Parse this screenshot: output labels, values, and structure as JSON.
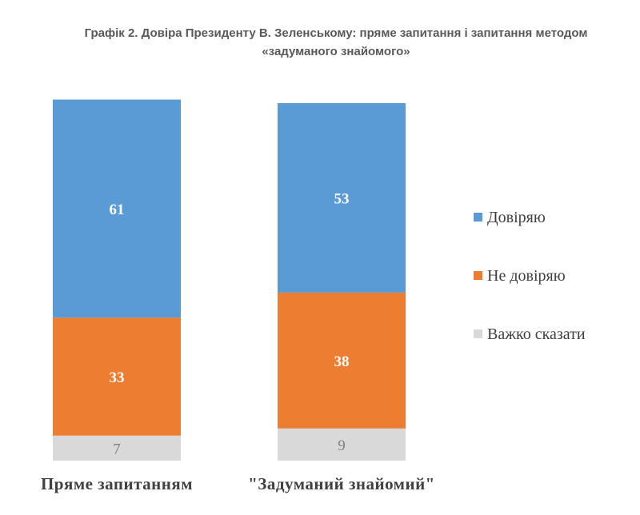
{
  "chart_data": {
    "type": "bar",
    "stacked": true,
    "title_lines": [
      "Графік 2. Довіра Президенту В. Зеленському: пряме запитання і запитання методом",
      "«задуманого знайомого»"
    ],
    "categories": [
      "Пряме запитанням",
      "\"Задуманий знайомий\""
    ],
    "series": [
      {
        "name": "Важко сказати",
        "values": [
          7,
          9
        ]
      },
      {
        "name": "Не довіряю",
        "values": [
          33,
          38
        ]
      },
      {
        "name": "Довіряю",
        "values": [
          61,
          53
        ]
      }
    ],
    "legend_order": [
      "Довіряю",
      "Не довіряю",
      "Важко сказати"
    ],
    "colors": {
      "Довіряю": "#5b9bd5",
      "Не довіряю": "#ed7d31",
      "Важко сказати": "#d9d9d9"
    },
    "label_colors": {
      "Довіряю": "#ffffff",
      "Не довіряю": "#ffffff",
      "Важко сказати": "#7f7f7f"
    },
    "xlabel": "",
    "ylabel": "",
    "grid": false,
    "legend_position": "right"
  }
}
